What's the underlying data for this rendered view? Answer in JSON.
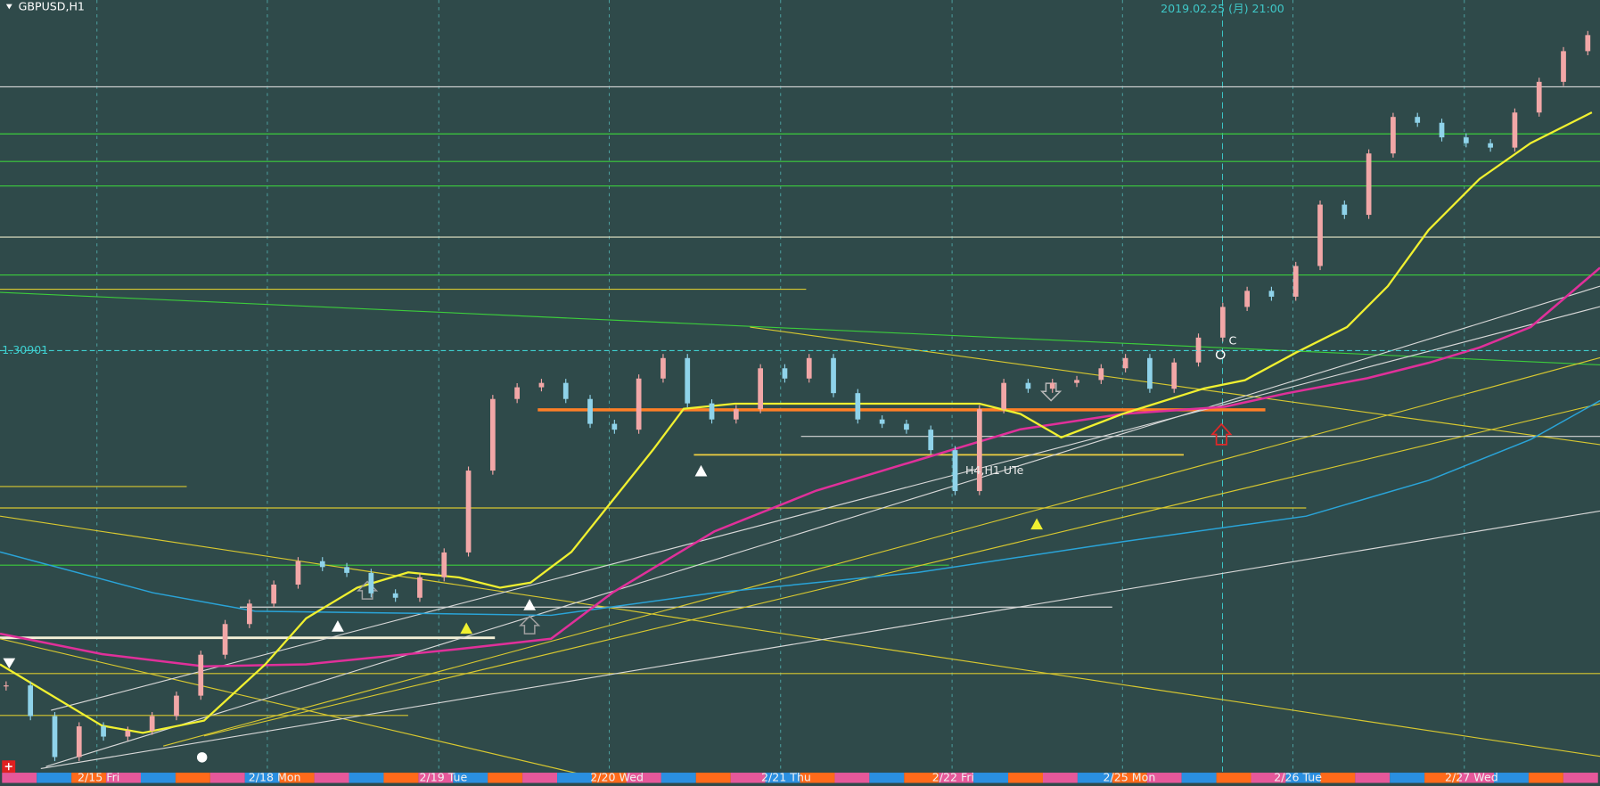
{
  "chart_data": {
    "type": "candlestick",
    "title": "GBPUSD,H1",
    "crosshair_time": "2019.02.25 (月) 21:00",
    "price_label": 1.30901,
    "annotations": [
      "C",
      "H4,H1 UTe"
    ],
    "date_labels": [
      "2/15 Fri",
      "2/18 Mon",
      "2/19 Tue",
      "2/20 Wed",
      "2/21 Thu",
      "2/22 Fri",
      "2/25 Mon",
      "2/26 Tue",
      "2/27 Wed"
    ],
    "ylim": [
      1.2802,
      1.333
    ],
    "colors": {
      "up": "#f2a7a7",
      "down": "#8fd3ea",
      "price_line": "#3fd0d0"
    },
    "values": [
      1.2861,
      1.284,
      1.2812,
      1.2833,
      1.2826,
      1.283,
      1.284,
      1.2854,
      1.2882,
      1.2903,
      1.2917,
      1.293,
      1.2946,
      1.2942,
      1.2938,
      1.2924,
      1.2921,
      1.2935,
      1.2952,
      1.3008,
      1.3057,
      1.3065,
      1.3068,
      1.3057,
      1.304,
      1.3036,
      1.3071,
      1.3085,
      1.3054,
      1.3043,
      1.305,
      1.3078,
      1.3071,
      1.3085,
      1.3061,
      1.3043,
      1.304,
      1.3036,
      1.3022,
      1.2994,
      1.305,
      1.3068,
      1.3064,
      1.3068,
      1.307,
      1.3078,
      1.3085,
      1.3064,
      1.3082,
      1.3099,
      1.312,
      1.3131,
      1.3127,
      1.3148,
      1.319,
      1.3183,
      1.3225,
      1.325,
      1.3246,
      1.3236,
      1.3232,
      1.3229,
      1.3253,
      1.3274,
      1.3295,
      1.3306
    ]
  }
}
